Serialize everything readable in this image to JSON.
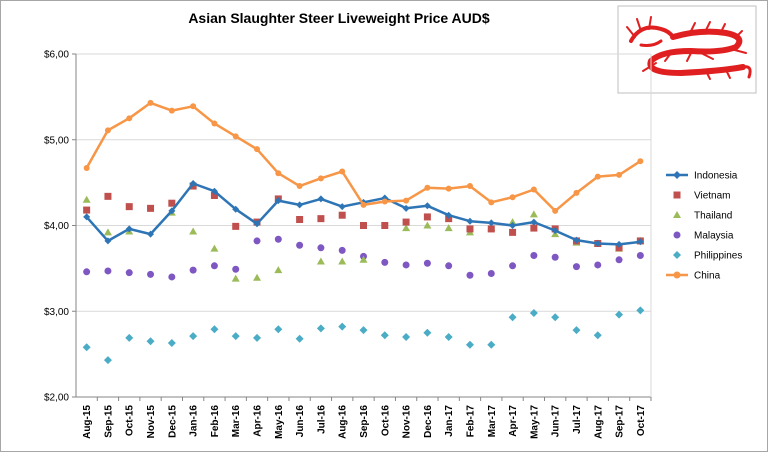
{
  "chart_data": {
    "type": "line",
    "title": "Asian Slaughter Steer Liveweight Price AUD$",
    "xlabel": "",
    "ylabel": "",
    "ylim": [
      2,
      6
    ],
    "yticks": [
      2,
      3,
      4,
      5,
      6
    ],
    "ytick_labels": [
      "$2,00",
      "$3,00",
      "$4,00",
      "$5,00",
      "$6,00"
    ],
    "grid": "horizontal",
    "legend_position": "right",
    "categories": [
      "Aug-15",
      "Sep-15",
      "Oct-15",
      "Nov-15",
      "Dec-15",
      "Jan-16",
      "Feb-16",
      "Mar-16",
      "Apr-16",
      "May-16",
      "Jun-16",
      "Jul-16",
      "Aug-16",
      "Sep-16",
      "Oct-16",
      "Nov-16",
      "Dec-16",
      "Jan-17",
      "Feb-17",
      "Mar-17",
      "Apr-17",
      "May-17",
      "Jun-17",
      "Jul-17",
      "Aug-17",
      "Sep-17",
      "Oct-17"
    ],
    "series": [
      {
        "name": "Indonesia",
        "color": "#2e75b6",
        "marker": "diamond",
        "line": true,
        "values": [
          4.1,
          3.82,
          3.96,
          3.9,
          4.17,
          4.49,
          4.4,
          4.19,
          4.02,
          4.29,
          4.24,
          4.31,
          4.22,
          4.27,
          4.32,
          4.2,
          4.23,
          4.12,
          4.05,
          4.03,
          4.0,
          4.04,
          3.94,
          3.83,
          3.79,
          3.78,
          3.81
        ]
      },
      {
        "name": "Vietnam",
        "color": "#c0504d",
        "marker": "square",
        "line": false,
        "values": [
          4.18,
          4.34,
          4.22,
          4.2,
          4.26,
          4.46,
          4.35,
          3.99,
          4.04,
          4.31,
          4.07,
          4.08,
          4.12,
          4.0,
          4.0,
          4.04,
          4.1,
          4.08,
          3.96,
          3.96,
          3.92,
          3.97,
          3.96,
          3.82,
          3.79,
          3.74,
          3.82
        ]
      },
      {
        "name": "Thailand",
        "color": "#9bbb59",
        "marker": "triangle",
        "line": false,
        "values": [
          4.3,
          3.92,
          3.93,
          null,
          4.15,
          3.93,
          3.73,
          3.38,
          3.39,
          3.48,
          null,
          3.58,
          3.58,
          3.6,
          null,
          3.97,
          4.0,
          3.97,
          3.92,
          3.97,
          4.04,
          4.13,
          3.9,
          3.8,
          3.79,
          3.73,
          3.82
        ]
      },
      {
        "name": "Malaysia",
        "color": "#7e57c2",
        "marker": "circle",
        "line": false,
        "values": [
          3.46,
          3.47,
          3.45,
          3.43,
          3.4,
          3.48,
          3.53,
          3.49,
          3.82,
          3.84,
          3.77,
          3.74,
          3.71,
          3.64,
          3.57,
          3.54,
          3.56,
          3.53,
          3.42,
          3.44,
          3.53,
          3.65,
          3.63,
          3.52,
          3.54,
          3.6,
          3.65
        ]
      },
      {
        "name": "Philippines",
        "color": "#4bacc6",
        "marker": "diamond",
        "line": false,
        "values": [
          2.58,
          2.43,
          2.69,
          2.65,
          2.63,
          2.71,
          2.79,
          2.71,
          2.69,
          2.79,
          2.68,
          2.8,
          2.82,
          2.78,
          2.72,
          2.7,
          2.75,
          2.7,
          2.61,
          2.61,
          2.93,
          2.98,
          2.93,
          2.78,
          2.72,
          2.96,
          3.01
        ]
      },
      {
        "name": "China",
        "color": "#f79646",
        "marker": "circle",
        "line": true,
        "values": [
          4.67,
          5.11,
          5.25,
          5.43,
          5.34,
          5.39,
          5.19,
          5.04,
          4.89,
          4.61,
          4.46,
          4.55,
          4.63,
          4.24,
          4.28,
          4.29,
          4.44,
          4.43,
          4.46,
          4.27,
          4.33,
          4.42,
          4.17,
          4.38,
          4.57,
          4.59,
          4.75
        ]
      }
    ]
  },
  "logo": {
    "name": "red dragon"
  }
}
